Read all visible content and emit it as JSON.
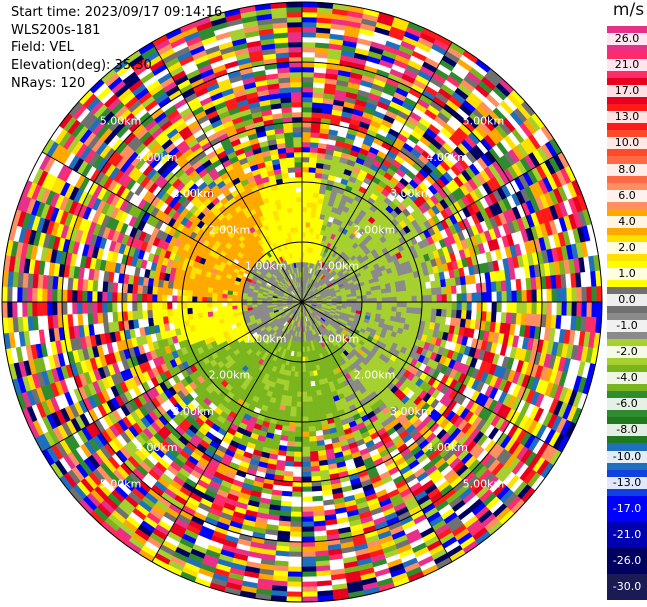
{
  "info": {
    "start_time": "Start time: 2023/09/17 09:14:16",
    "station": "WLS200s-181",
    "field": "Field: VEL",
    "elevation": "Elevation(deg): 35.30",
    "nrays": "NRays: 120"
  },
  "colorbar": {
    "unit": "m/s",
    "ticks": [
      "26.0",
      "21.0",
      "17.0",
      "13.0",
      "10.0",
      "8.0",
      "6.0",
      "4.0",
      "2.0",
      "1.0",
      "0.0",
      "-1.0",
      "-2.0",
      "-4.0",
      "-6.0",
      "-8.0",
      "-10.0",
      "-13.0",
      "-17.0",
      "-21.0",
      "-26.0",
      "-30.0"
    ],
    "colors": [
      "#e8308a",
      "#ff2b6a",
      "#e8001e",
      "#ff1a1a",
      "#ff4a2a",
      "#ff6a45",
      "#ff8f60",
      "#ffa800",
      "#ffe100",
      "#ffff00",
      "#707070",
      "#8a8a8a",
      "#a5d02e",
      "#7ab51e",
      "#2e8b2e",
      "#1f7a1f",
      "#1f6fbf",
      "#1040e0",
      "#0000ff",
      "#0000b0",
      "#000060",
      "#1a1a55"
    ]
  },
  "range_labels": [
    "1.00km",
    "2.00km",
    "3.00km",
    "4.00km",
    "5.00km"
  ]
}
